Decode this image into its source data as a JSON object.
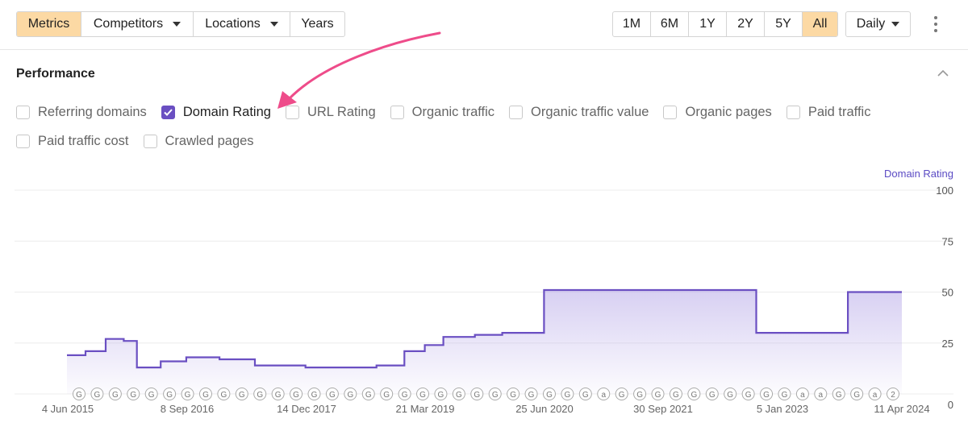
{
  "toolbar": {
    "tabs": [
      {
        "label": "Metrics",
        "active": true,
        "dropdown": false
      },
      {
        "label": "Competitors",
        "active": false,
        "dropdown": true
      },
      {
        "label": "Locations",
        "active": false,
        "dropdown": true
      },
      {
        "label": "Years",
        "active": false,
        "dropdown": false
      }
    ],
    "ranges": [
      {
        "label": "1M",
        "active": false
      },
      {
        "label": "6M",
        "active": false
      },
      {
        "label": "1Y",
        "active": false
      },
      {
        "label": "2Y",
        "active": false
      },
      {
        "label": "5Y",
        "active": false
      },
      {
        "label": "All",
        "active": true
      }
    ],
    "granularity": "Daily",
    "active_color": "#fcd9a4"
  },
  "panel": {
    "title": "Performance",
    "checkboxes_row1": [
      {
        "label": "Referring domains",
        "checked": false
      },
      {
        "label": "Domain Rating",
        "checked": true
      },
      {
        "label": "URL Rating",
        "checked": false
      },
      {
        "label": "Organic traffic",
        "checked": false
      },
      {
        "label": "Organic traffic value",
        "checked": false
      },
      {
        "label": "Organic pages",
        "checked": false
      },
      {
        "label": "Paid traffic",
        "checked": false
      }
    ],
    "checkboxes_row2": [
      {
        "label": "Paid traffic cost",
        "checked": false
      },
      {
        "label": "Crawled pages",
        "checked": false
      }
    ],
    "accent_color": "#6a4fc2",
    "annotation_arrow_color": "#ee4c8a"
  },
  "chart_data": {
    "type": "area",
    "ylabel": "Domain Rating",
    "y_ticks": [
      "100",
      "75",
      "50",
      "25",
      "0"
    ],
    "ylim": [
      0,
      100
    ],
    "x_ticks": [
      "4 Jun 2015",
      "8 Sep 2016",
      "14 Dec 2017",
      "21 Mar 2019",
      "25 Jun 2020",
      "30 Sep 2021",
      "5 Jan 2023",
      "11 Apr 2024"
    ],
    "grid": true,
    "series": [
      {
        "name": "Domain Rating",
        "color": "#6a4fc2",
        "x": [
          "2015-06-04",
          "2015-08-15",
          "2015-11-01",
          "2016-01-10",
          "2016-03-01",
          "2016-06-01",
          "2016-09-08",
          "2017-01-15",
          "2017-06-01",
          "2017-12-14",
          "2018-06-01",
          "2018-09-15",
          "2019-01-01",
          "2019-03-21",
          "2019-06-01",
          "2019-10-01",
          "2020-01-15",
          "2020-06-20",
          "2020-06-25",
          "2021-01-01",
          "2021-09-30",
          "2022-06-01",
          "2022-09-20",
          "2022-09-25",
          "2023-01-05",
          "2023-06-01",
          "2023-09-10",
          "2023-09-15",
          "2024-04-11"
        ],
        "values": [
          19,
          21,
          27,
          26,
          13,
          16,
          18,
          17,
          14,
          13,
          13,
          14,
          21,
          24,
          28,
          29,
          30,
          30,
          51,
          51,
          51,
          51,
          51,
          30,
          30,
          30,
          30,
          50,
          50
        ]
      }
    ],
    "x_markers": [
      "G",
      "G",
      "G",
      "G",
      "G",
      "G",
      "G",
      "G",
      "G",
      "G",
      "G",
      "G",
      "G",
      "G",
      "G",
      "G",
      "G",
      "G",
      "G",
      "G",
      "G",
      "G",
      "G",
      "G",
      "G",
      "G",
      "G",
      "G",
      "G",
      "a",
      "G",
      "G",
      "G",
      "G",
      "G",
      "G",
      "G",
      "G",
      "G",
      "G",
      "a",
      "a",
      "G",
      "G",
      "a",
      "2"
    ]
  }
}
